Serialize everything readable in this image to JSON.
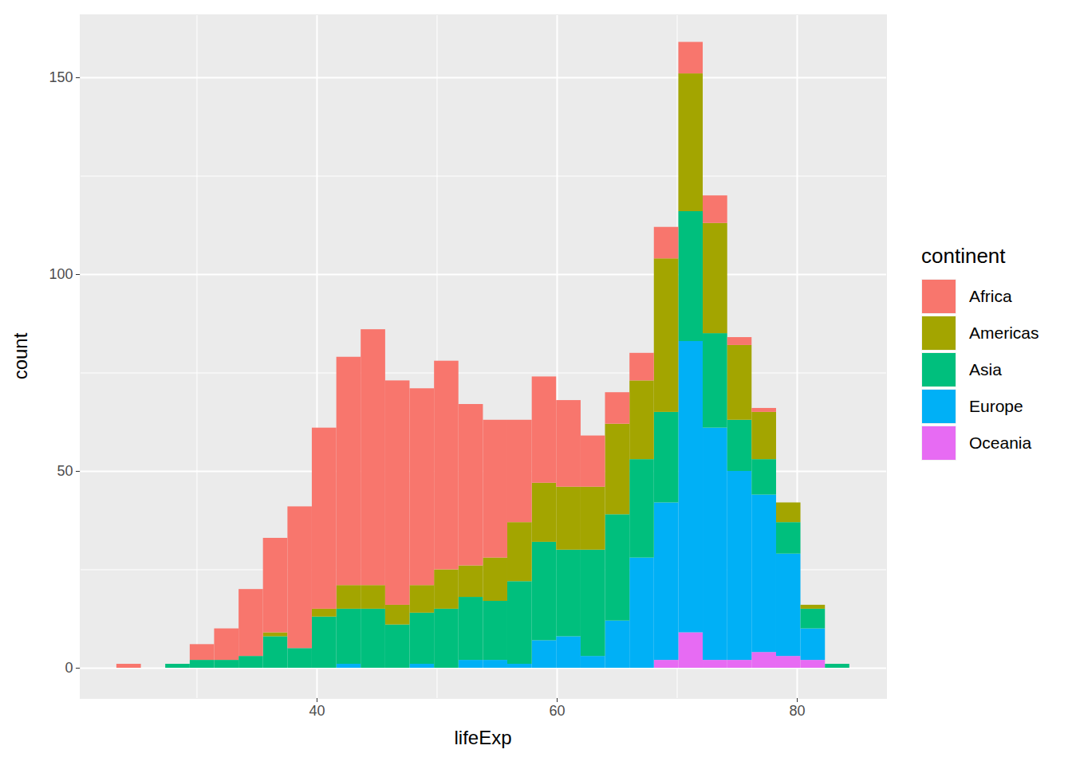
{
  "chart_data": {
    "type": "histogram",
    "x_label": "lifeExp",
    "y_label": "count",
    "legend_title": "continent",
    "bins": [
      23.32,
      25.36,
      27.39,
      29.43,
      31.46,
      33.5,
      35.53,
      37.57,
      39.6,
      41.64,
      43.67,
      45.71,
      47.74,
      49.78,
      51.81,
      53.85,
      55.88,
      57.92,
      59.95,
      61.99,
      64.02,
      66.06,
      68.09,
      70.13,
      72.16,
      74.2,
      76.23,
      78.27,
      80.3,
      82.34,
      84.37
    ],
    "series": [
      {
        "name": "Africa",
        "color": "#F8766D",
        "values": [
          1,
          0,
          0,
          4,
          8,
          17,
          24,
          36,
          46,
          58,
          65,
          57,
          50,
          53,
          41,
          35,
          26,
          27,
          22,
          13,
          8,
          7,
          8,
          8,
          7,
          2,
          1,
          0,
          0,
          0
        ]
      },
      {
        "name": "Americas",
        "color": "#A3A500",
        "values": [
          0,
          0,
          0,
          0,
          0,
          0,
          1,
          0,
          2,
          6,
          6,
          5,
          7,
          10,
          8,
          11,
          15,
          15,
          16,
          16,
          23,
          20,
          39,
          35,
          28,
          19,
          12,
          5,
          1,
          0
        ]
      },
      {
        "name": "Asia",
        "color": "#00BF7D",
        "values": [
          0,
          0,
          1,
          2,
          2,
          3,
          8,
          5,
          13,
          14,
          15,
          11,
          13,
          15,
          16,
          15,
          21,
          25,
          22,
          27,
          27,
          25,
          23,
          33,
          24,
          13,
          9,
          8,
          5,
          1
        ]
      },
      {
        "name": "Europe",
        "color": "#00B0F6",
        "values": [
          0,
          0,
          0,
          0,
          0,
          0,
          0,
          0,
          0,
          1,
          0,
          0,
          1,
          0,
          2,
          2,
          1,
          7,
          8,
          3,
          12,
          28,
          40,
          74,
          59,
          48,
          40,
          26,
          8,
          0
        ]
      },
      {
        "name": "Oceania",
        "color": "#E76BF3",
        "values": [
          0,
          0,
          0,
          0,
          0,
          0,
          0,
          0,
          0,
          0,
          0,
          0,
          0,
          0,
          0,
          0,
          0,
          0,
          0,
          0,
          0,
          0,
          2,
          9,
          2,
          2,
          4,
          3,
          2,
          0
        ]
      }
    ],
    "xlim": [
      20.27,
      87.44
    ],
    "ylim": [
      -7.7,
      166
    ],
    "xticks": [
      40,
      60,
      80
    ],
    "yticks": [
      0,
      50,
      100,
      150
    ],
    "stacked": true,
    "grid": true,
    "legend": "right"
  }
}
